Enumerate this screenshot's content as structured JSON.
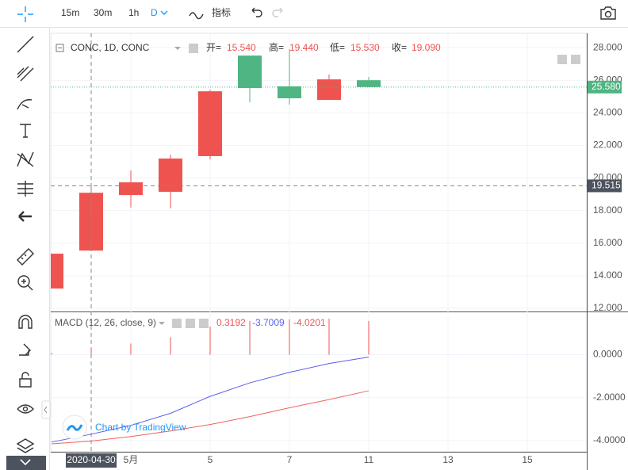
{
  "toolbar": {
    "intervals": [
      "15m",
      "30m",
      "1h",
      "D"
    ],
    "indicators": "指标"
  },
  "legend": {
    "symbol": "CONC, 1D, CONC",
    "items": [
      {
        "label": "开=",
        "value": "15.540"
      },
      {
        "label": "高=",
        "value": "19.440"
      },
      {
        "label": "低=",
        "value": "15.530"
      },
      {
        "label": "收=",
        "value": "19.090"
      }
    ]
  },
  "macd_legend": {
    "title": "MACD (12, 26, close, 9)",
    "values": [
      "0.3192",
      "-3.7009",
      "-4.0201"
    ]
  },
  "watermark": "Chart by TradingView",
  "chart_data": [
    {
      "type": "candlestick",
      "categories": [
        null,
        "2020-04-30",
        "5月",
        null,
        "5",
        null,
        "7",
        null,
        "11",
        null,
        "13",
        null,
        "15"
      ],
      "series": [
        {
          "name": "open",
          "values": [
            13.21,
            15.54,
            18.95,
            19.15,
            21.34,
            27.51,
            25.62,
            24.79,
            26.0,
            null,
            null,
            null,
            null
          ]
        },
        {
          "name": "high",
          "values": [
            15.35,
            19.44,
            20.46,
            21.43,
            25.42,
            27.51,
            27.9,
            26.35,
            26.2,
            null,
            null,
            null,
            null
          ]
        },
        {
          "name": "low",
          "values": [
            13.21,
            15.53,
            18.18,
            18.13,
            21.14,
            24.64,
            24.5,
            24.79,
            25.58,
            null,
            null,
            null,
            null
          ]
        },
        {
          "name": "close",
          "values": [
            15.35,
            19.09,
            19.73,
            21.19,
            25.32,
            25.52,
            24.89,
            26.05,
            25.58,
            null,
            null,
            null,
            null
          ]
        }
      ],
      "up_color": "#ef5350",
      "down_color": "#4fb582",
      "ylim": [
        11.85,
        28.88
      ],
      "yticks": [
        {
          "value": 12,
          "label": "12.000"
        },
        {
          "value": 14,
          "label": "14.000"
        },
        {
          "value": 16,
          "label": "16.000"
        },
        {
          "value": 18,
          "label": "18.000"
        },
        {
          "value": 20,
          "label": "20.000"
        },
        {
          "value": 22,
          "label": "22.000"
        },
        {
          "value": 24,
          "label": "24.000"
        },
        {
          "value": 26,
          "label": "26.000"
        },
        {
          "value": 28,
          "label": "28.000"
        }
      ],
      "last_price": {
        "value": 25.58,
        "label": "25.580"
      },
      "crosshair_price": {
        "value": 19.515,
        "label": "19.515"
      },
      "crosshair_index": 1,
      "grid": true
    },
    {
      "type": "macd",
      "series": [
        {
          "name": "MACD",
          "color": "#5a5ef0",
          "values": [
            -4.07,
            -3.7009,
            -3.29,
            -2.73,
            -1.94,
            -1.31,
            -0.82,
            -0.41,
            -0.11,
            null,
            null,
            null,
            null
          ]
        },
        {
          "name": "Signal",
          "color": "#f0625a",
          "values": [
            -4.15,
            -4.0201,
            -3.81,
            -3.55,
            -3.25,
            -2.88,
            -2.47,
            -2.09,
            -1.68,
            null,
            null,
            null,
            null
          ]
        }
      ],
      "histogram": {
        "color": "#ef5350",
        "values": [
          0.08,
          0.3192,
          0.52,
          0.82,
          1.31,
          1.57,
          1.65,
          1.68,
          1.57,
          null,
          null,
          null,
          null
        ]
      },
      "ylim": [
        -4.52,
        1.94
      ],
      "yticks": [
        {
          "value": 0,
          "label": "0.0000"
        },
        {
          "value": -2,
          "label": "-2.0000"
        },
        {
          "value": -4,
          "label": "-4.0000"
        }
      ],
      "grid": true
    }
  ]
}
